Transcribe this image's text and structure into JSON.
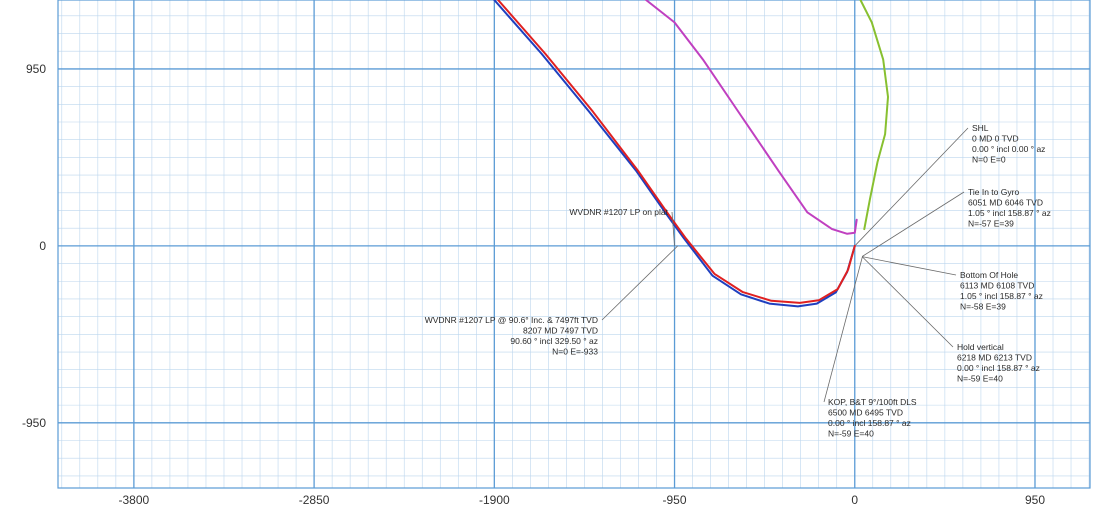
{
  "chart_data": {
    "type": "line",
    "title": "",
    "xlabel": "",
    "ylabel": "",
    "xlim": [
      -4200,
      1240
    ],
    "ylim": [
      -1300,
      1320
    ],
    "x_ticks": [
      "-3800",
      "-2850",
      "-1900",
      "-950",
      "0",
      "950"
    ],
    "x_tick_values": [
      -3800,
      -2850,
      -1900,
      -950,
      0,
      950
    ],
    "y_ticks": [
      "950",
      "0",
      "-950"
    ],
    "y_tick_values": [
      950,
      0,
      -950
    ],
    "grid": true,
    "colors": {
      "grid_major": "#5b9bd5",
      "grid_minor": "#bcd6ee",
      "background": "#ffffff",
      "annotation_line": "#6a6a6a"
    },
    "series": [
      {
        "color": "#1f3fbf",
        "x": [
          -1900,
          -1650,
          -1400,
          -1150,
          -1000,
          -900,
          -750,
          -600,
          -450,
          -300,
          -200,
          -100,
          -40,
          0
        ],
        "y": [
          1320,
          1030,
          720,
          400,
          180,
          40,
          -160,
          -260,
          -310,
          -325,
          -310,
          -250,
          -140,
          0
        ]
      },
      {
        "color": "#e02020",
        "x": [
          -1880,
          -1630,
          -1380,
          -1140,
          -990,
          -890,
          -740,
          -590,
          -440,
          -290,
          -190,
          -90,
          -35,
          0
        ],
        "y": [
          1320,
          1030,
          720,
          400,
          180,
          40,
          -150,
          -248,
          -295,
          -306,
          -292,
          -232,
          -128,
          0
        ]
      },
      {
        "color": "#c040c0",
        "x": [
          -1100,
          -950,
          -800,
          -600,
          -400,
          -250,
          -120,
          -40,
          0,
          10
        ],
        "y": [
          1320,
          1200,
          1000,
          700,
          400,
          180,
          90,
          65,
          70,
          140
        ]
      },
      {
        "color": "#88c030",
        "x": [
          30,
          90,
          150,
          175,
          160,
          120,
          80,
          50
        ],
        "y": [
          1320,
          1200,
          1000,
          800,
          600,
          450,
          250,
          90
        ]
      }
    ],
    "annotations": [
      {
        "lines": [
          "SHL",
          "0 MD 0 TVD",
          "0.00 ° incl 0.00 ° az",
          "N=0 E=0"
        ],
        "point": [
          5,
          5
        ]
      },
      {
        "lines": [
          "Tie In to Gyro",
          "6051 MD 6046 TVD",
          "1.05 ° incl 158.87 ° az",
          "N=-57 E=39"
        ],
        "point": [
          39,
          -57
        ]
      },
      {
        "lines": [
          "WVDNR #1207 LP on plat"
        ],
        "point": [
          -950,
          0
        ]
      },
      {
        "lines": [
          "Bottom Of Hole",
          "6113 MD 6108 TVD",
          "1.05 ° incl 158.87 ° az",
          "N=-58 E=39"
        ],
        "point": [
          39,
          -58
        ]
      },
      {
        "lines": [
          "Hold vertical",
          "6218 MD 6213 TVD",
          "0.00 ° incl 158.87 ° az",
          "N=-59 E=40"
        ],
        "point": [
          40,
          -59
        ]
      },
      {
        "lines": [
          "WVDNR #1207 LP @ 90.6° Inc. & 7497ft TVD",
          "8207 MD 7497 TVD",
          "90.60 ° incl 329.50 ° az",
          "N=0 E=-933"
        ],
        "point": [
          -933,
          0
        ]
      },
      {
        "lines": [
          "KOP, B&T 9°/100ft DLS",
          "6500 MD 6495 TVD",
          "0.00 ° incl 158.87 ° az",
          "N=-59 E=40"
        ],
        "point": [
          40,
          -59
        ]
      }
    ]
  }
}
